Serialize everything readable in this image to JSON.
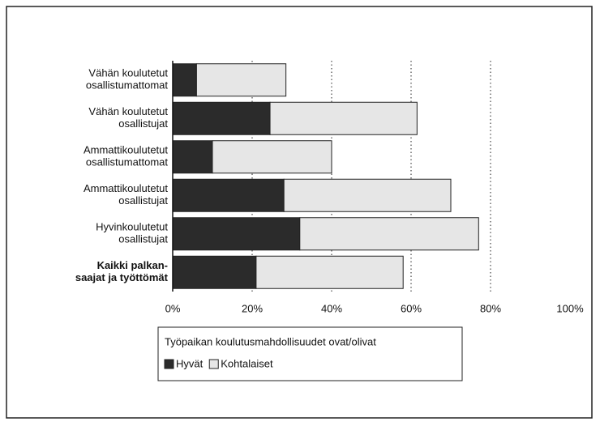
{
  "chart_data": {
    "type": "stacked_barh",
    "categories": [
      "Vähän koulutetut\nosallistumattomat",
      "Vähän koulutetut\nosallistujat",
      "Ammattikoulutetut\nosallistumattomat",
      "Ammattikoulutetut\nosallistujat",
      "Hyvinkoulutetut\nosallistujat",
      "Kaikki palkan-\nsaajat ja työttömät"
    ],
    "series": [
      {
        "name": "Hyvät",
        "color": "#2b2b2b",
        "values": [
          6,
          24.5,
          10,
          28,
          32,
          21
        ]
      },
      {
        "name": "Kohtalaiset",
        "color": "#e6e6e6",
        "values": [
          22.5,
          37,
          30,
          42,
          45,
          37
        ]
      }
    ],
    "xlim": [
      0,
      100
    ],
    "xticks": [
      {
        "value": 0,
        "label": "0%"
      },
      {
        "value": 20,
        "label": "20%"
      },
      {
        "value": 40,
        "label": "40%"
      },
      {
        "value": 60,
        "label": "60%"
      },
      {
        "value": 80,
        "label": "80%"
      },
      {
        "value": 100,
        "label": "100%"
      }
    ],
    "legend_title": "Työpaikan koulutusmahdollisuudet ovat/olivat",
    "grid": true
  }
}
